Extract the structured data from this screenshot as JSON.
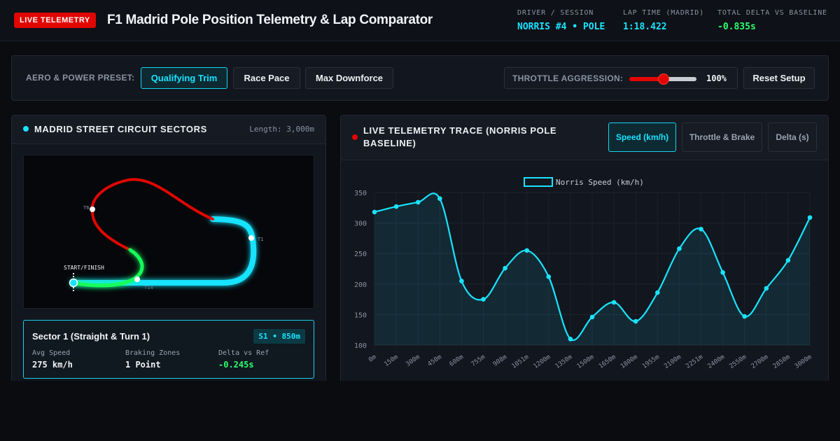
{
  "header": {
    "badge": "LIVE TELEMETRY",
    "title": "F1 Madrid Pole Position Telemetry & Lap Comparator",
    "stats": [
      {
        "label": "DRIVER / SESSION",
        "value": "NORRIS #4 • POLE"
      },
      {
        "label": "LAP TIME (MADRID)",
        "value": "1:18.422"
      },
      {
        "label": "TOTAL DELTA VS BASELINE",
        "value": "-0.835s"
      }
    ]
  },
  "controls": {
    "preset_label": "AERO & POWER PRESET:",
    "presets": [
      "Qualifying Trim",
      "Race Pace",
      "Max Downforce"
    ],
    "active_preset": "Qualifying Trim",
    "throttle_label": "THROTTLE AGGRESSION:",
    "throttle_value": "100%",
    "throttle_fraction": 0.5,
    "reset_label": "Reset Setup"
  },
  "circuit": {
    "title": "MADRID STREET CIRCUIT SECTORS",
    "length": "Length: 3,000m",
    "start_label": "START/FINISH",
    "turn_labels": [
      "T1",
      "T6",
      "T14"
    ],
    "colors": {
      "sector1": "#19e3ff",
      "sector2": "#e10600",
      "sector3": "#14ff5a"
    },
    "card": {
      "title": "Sector 1 (Straight & Turn 1)",
      "badge": "S1 • 850m",
      "metrics": [
        {
          "label": "Avg Speed",
          "value": "275 km/h"
        },
        {
          "label": "Braking Zones",
          "value": "1 Point"
        },
        {
          "label": "Delta vs Ref",
          "value": "-0.245s"
        }
      ]
    }
  },
  "telemetry": {
    "title": "LIVE TELEMETRY TRACE (NORRIS POLE BASELINE)",
    "tabs": [
      "Speed (km/h)",
      "Throttle & Brake",
      "Delta (s)"
    ],
    "active_tab": "Speed (km/h)"
  },
  "chart_data": {
    "type": "area",
    "legend": "Norris Speed (km/h)",
    "legend_position": "top-center",
    "grid": true,
    "color": "#19e3ff",
    "categories": [
      "0m",
      "150m",
      "300m",
      "450m",
      "600m",
      "755m",
      "908m",
      "1051m",
      "1200m",
      "1350m",
      "1500m",
      "1650m",
      "1800m",
      "1955m",
      "2100m",
      "2251m",
      "2400m",
      "2550m",
      "2700m",
      "2850m",
      "3000m"
    ],
    "values": [
      318,
      327,
      334,
      340,
      205,
      175,
      226,
      255,
      212,
      110,
      146,
      170,
      139,
      186,
      258,
      290,
      219,
      147,
      193,
      239,
      309
    ],
    "ylim": [
      100,
      350
    ],
    "yticks": [
      100,
      150,
      200,
      250,
      300,
      350
    ]
  }
}
